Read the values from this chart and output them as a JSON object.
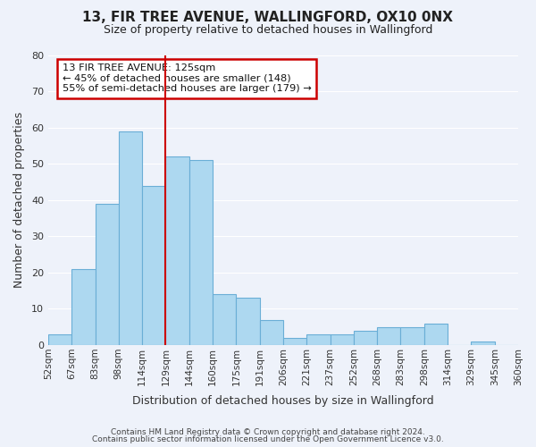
{
  "title": "13, FIR TREE AVENUE, WALLINGFORD, OX10 0NX",
  "subtitle": "Size of property relative to detached houses in Wallingford",
  "xlabel": "Distribution of detached houses by size in Wallingford",
  "ylabel": "Number of detached properties",
  "bar_color": "#add8f0",
  "bar_edge_color": "#6aaed6",
  "background_color": "#eef2fa",
  "grid_color": "#ffffff",
  "bin_edges": [
    "52sqm",
    "67sqm",
    "83sqm",
    "98sqm",
    "114sqm",
    "129sqm",
    "144sqm",
    "160sqm",
    "175sqm",
    "191sqm",
    "206sqm",
    "221sqm",
    "237sqm",
    "252sqm",
    "268sqm",
    "283sqm",
    "298sqm",
    "314sqm",
    "329sqm",
    "345sqm",
    "360sqm"
  ],
  "values": [
    3,
    21,
    39,
    59,
    44,
    52,
    51,
    14,
    13,
    7,
    2,
    3,
    3,
    4,
    5,
    5,
    6,
    0,
    1,
    0
  ],
  "ylim": [
    0,
    80
  ],
  "yticks": [
    0,
    10,
    20,
    30,
    40,
    50,
    60,
    70,
    80
  ],
  "vline_position": 4.5,
  "vline_color": "#cc0000",
  "annotation_title": "13 FIR TREE AVENUE: 125sqm",
  "annotation_line1": "← 45% of detached houses are smaller (148)",
  "annotation_line2": "55% of semi-detached houses are larger (179) →",
  "annotation_box_color": "#ffffff",
  "annotation_box_edge": "#cc0000",
  "footer1": "Contains HM Land Registry data © Crown copyright and database right 2024.",
  "footer2": "Contains public sector information licensed under the Open Government Licence v3.0."
}
